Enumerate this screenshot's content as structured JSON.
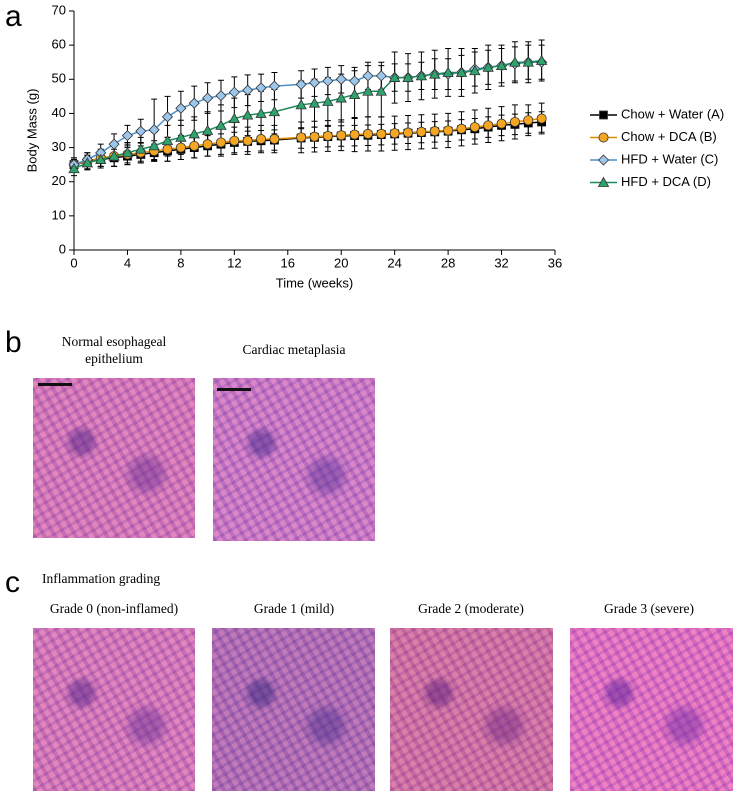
{
  "chart_data": {
    "type": "line",
    "x_label": "Time (weeks)",
    "y_label": "Body Mass (g)",
    "x": [
      0,
      1,
      2,
      3,
      4,
      5,
      6,
      7,
      8,
      9,
      10,
      11,
      12,
      13,
      14,
      15,
      17,
      18,
      19,
      20,
      21,
      22,
      23,
      24,
      25,
      26,
      27,
      28,
      29,
      30,
      31,
      32,
      33,
      34,
      35
    ],
    "xlim": [
      0,
      36
    ],
    "xticks": [
      0,
      4,
      8,
      12,
      16,
      20,
      24,
      28,
      32,
      36
    ],
    "ylim": [
      0,
      70
    ],
    "yticks": [
      0,
      10,
      20,
      30,
      40,
      50,
      60,
      70
    ],
    "grid": false,
    "legend": "right",
    "series": [
      {
        "name": "Chow + Water (A)",
        "color": "#000000",
        "fill": "#000000",
        "marker": "square",
        "values": [
          25,
          25.8,
          26.5,
          27,
          27.5,
          28,
          28.5,
          29,
          29.5,
          30,
          30.5,
          31,
          31.5,
          31.8,
          32,
          32.2,
          32.8,
          33,
          33.2,
          33.4,
          33.5,
          33.6,
          33.8,
          34,
          34.2,
          34.4,
          34.6,
          34.8,
          35.2,
          35.5,
          36,
          36.5,
          36.8,
          37.2,
          37.5
        ],
        "errors": [
          2,
          2,
          2,
          2.5,
          2.5,
          2.5,
          2.5,
          3,
          3,
          3,
          3,
          3,
          3,
          3,
          3,
          3,
          3,
          3,
          3,
          3,
          3,
          3,
          3,
          3,
          3,
          3,
          3,
          3,
          3,
          3,
          3,
          3,
          3,
          3,
          3
        ]
      },
      {
        "name": "Chow + DCA (B)",
        "color": "#E08A00",
        "fill": "#F5A623",
        "marker": "circle",
        "values": [
          25,
          26,
          27,
          27.5,
          28,
          28.5,
          29,
          29.5,
          30,
          30.5,
          31,
          31.5,
          32,
          32,
          32.5,
          32.5,
          33,
          33.2,
          33.4,
          33.6,
          33.8,
          34,
          34,
          34.2,
          34.4,
          34.6,
          34.8,
          35,
          35.5,
          36,
          36.5,
          37,
          37.5,
          38,
          38.5
        ],
        "errors": [
          2,
          2.5,
          2.5,
          3,
          3,
          3,
          3,
          3.5,
          3.5,
          3.5,
          3.5,
          4,
          4,
          4,
          4,
          4,
          4.5,
          4.5,
          4.5,
          4.5,
          5,
          5,
          5,
          5,
          5,
          5,
          5,
          5,
          5,
          5,
          5,
          5,
          5,
          4.5,
          4.5
        ]
      },
      {
        "name": "HFD + Water (C)",
        "color": "#4A90C8",
        "fill": "#9CC6EA",
        "marker": "diamond",
        "values": [
          25,
          26.5,
          28.5,
          31,
          33.5,
          34.8,
          35.2,
          39,
          41.5,
          43,
          44.5,
          45.2,
          46.2,
          46.8,
          47.5,
          48,
          48.5,
          49,
          49.5,
          50,
          49.5,
          51,
          51,
          50.5,
          50.5,
          51,
          51.5,
          51.5,
          52,
          53,
          53.5,
          54,
          54.5,
          55,
          55
        ],
        "errors": [
          1.5,
          2,
          2.5,
          3,
          3,
          3.5,
          9,
          6,
          5,
          5,
          4.5,
          4.5,
          4.5,
          4.5,
          4,
          4,
          4,
          4,
          4,
          4,
          4,
          4,
          4,
          4,
          4,
          4,
          4.5,
          4.5,
          5,
          5,
          5,
          5,
          5,
          5,
          5
        ]
      },
      {
        "name": "HFD + DCA (D)",
        "color": "#1E8A5A",
        "fill": "#2FA36E",
        "marker": "triangle",
        "values": [
          23.8,
          25.5,
          26.5,
          27.5,
          28.5,
          29.5,
          30.5,
          32,
          33,
          34,
          35,
          36.5,
          38.5,
          39.5,
          40,
          40.5,
          42.5,
          43,
          43.5,
          44.5,
          45.5,
          46.5,
          46.5,
          50.5,
          50.5,
          51,
          51.5,
          52,
          52,
          52.5,
          53.5,
          54,
          55,
          55,
          55.5
        ],
        "errors": [
          2,
          2,
          2.5,
          3,
          3,
          3.5,
          4,
          4.5,
          5,
          5,
          5.5,
          6,
          6,
          6,
          6.5,
          6.5,
          7,
          7,
          7,
          7,
          7,
          7.5,
          7.5,
          7.5,
          7,
          7,
          7,
          7,
          7,
          6.5,
          6.5,
          6,
          6,
          6,
          6
        ]
      }
    ]
  },
  "panel_labels": [
    "a",
    "b",
    "c"
  ],
  "panel_b": {
    "images": [
      {
        "label": "Normal esophageal epithelium"
      },
      {
        "label": "Cardiac metaplasia"
      }
    ]
  },
  "panel_c": {
    "title": "Inflammation grading",
    "images": [
      {
        "label": "Grade 0 (non-inflamed)"
      },
      {
        "label": "Grade 1 (mild)"
      },
      {
        "label": "Grade 2 (moderate)"
      },
      {
        "label": "Grade 3 (severe)"
      }
    ]
  }
}
